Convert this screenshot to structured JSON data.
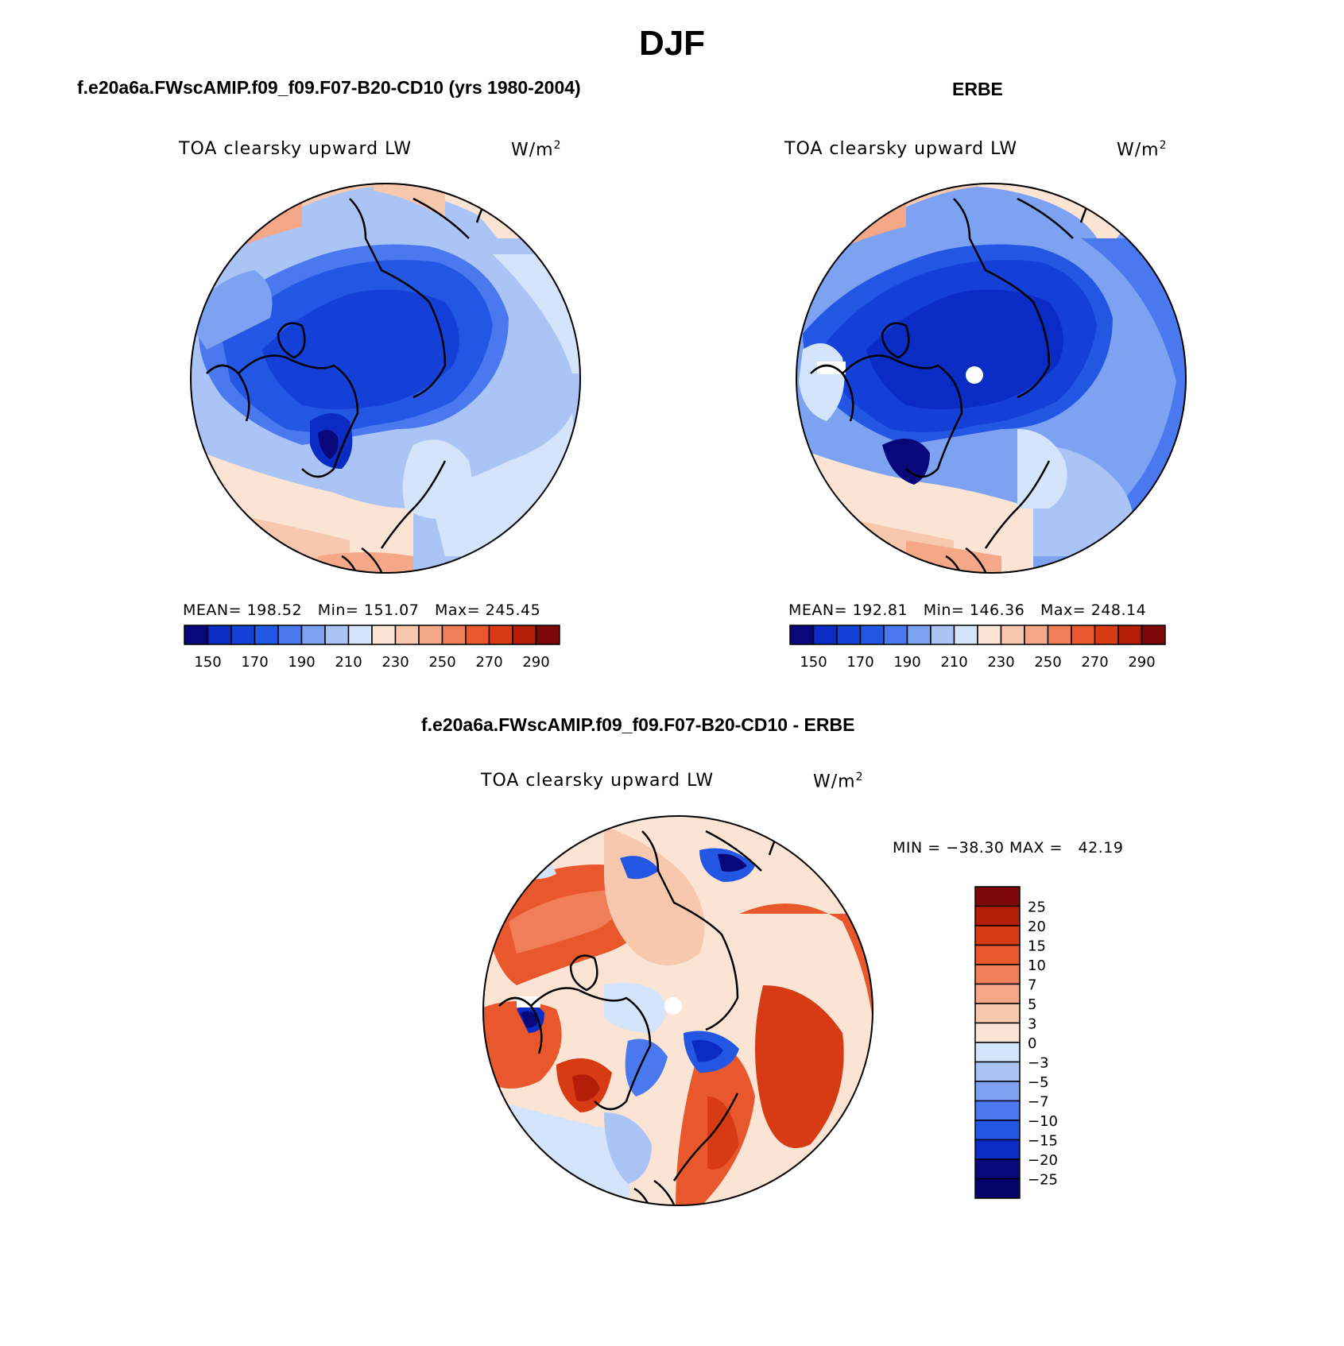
{
  "main_title": "DJF",
  "panels": [
    {
      "title": "f.e20a6a.FWscAMIP.f09_f09.F07-B20-CD10 (yrs 1980-2004)",
      "variable": "TOA clearsky upward LW",
      "units": "W/m",
      "units_exp": "2",
      "mean_label": "MEAN=",
      "mean": "198.52",
      "min_label": "Min=",
      "min": "151.07",
      "max_label": "Max=",
      "max": "245.45"
    },
    {
      "title": "ERBE",
      "variable": "TOA clearsky upward LW",
      "units": "W/m",
      "units_exp": "2",
      "mean_label": "MEAN=",
      "mean": "192.81",
      "min_label": "Min=",
      "min": "146.36",
      "max_label": "Max=",
      "max": "248.14"
    },
    {
      "title": "f.e20a6a.FWscAMIP.f09_f09.F07-B20-CD10 - ERBE",
      "variable": "TOA clearsky upward LW",
      "units": "W/m",
      "units_exp": "2",
      "minmax_text": "MIN = −38.30 MAX =   42.19"
    }
  ],
  "colorbar_abs": {
    "tick_labels": [
      "150",
      "170",
      "190",
      "210",
      "230",
      "250",
      "270",
      "290"
    ],
    "colors": [
      "#08087a",
      "#0a2cc4",
      "#1440d8",
      "#2456e4",
      "#4a78ee",
      "#7da2f2",
      "#abc4f6",
      "#d4e4fa",
      "#fbe4d4",
      "#f7c8ae",
      "#f4a888",
      "#f07e58",
      "#e8582c",
      "#d83a14",
      "#b41e08",
      "#7c0808"
    ]
  },
  "colorbar_diff": {
    "tick_labels": [
      "25",
      "20",
      "15",
      "10",
      "7",
      "5",
      "3",
      "0",
      "−3",
      "−5",
      "−7",
      "−10",
      "−15",
      "−20",
      "−25"
    ],
    "colors": [
      "#7c0808",
      "#b41e08",
      "#d83a14",
      "#e8582c",
      "#f07e58",
      "#f4a888",
      "#f7c8ae",
      "#fbe4d4",
      "#d4e4fa",
      "#abc4f6",
      "#7da2f2",
      "#4a78ee",
      "#2456e4",
      "#0a2cc4",
      "#08087a",
      "#04046a"
    ]
  }
}
